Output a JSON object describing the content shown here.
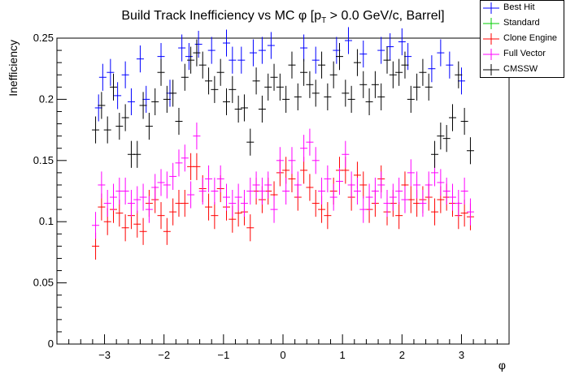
{
  "chart_data": {
    "type": "scatter",
    "title": "Build Track Inefficiency vs MC φ [p",
    "title_sub": "T",
    "title_rest": " > 0.0 GeV/c, Barrel]",
    "xlabel": "φ",
    "ylabel": "Inefficiency",
    "xlim": [
      -3.8,
      3.8
    ],
    "ylim": [
      0,
      0.25
    ],
    "xticks": [
      -3,
      -2,
      -1,
      0,
      1,
      2,
      3
    ],
    "xtick_labels": [
      "−3",
      "−2",
      "−1",
      "0",
      "1",
      "2",
      "3"
    ],
    "yticks": [
      0,
      0.05,
      0.1,
      0.15,
      0.2,
      0.25
    ],
    "ytick_labels": [
      "0",
      "0.05",
      "0.1",
      "0.15",
      "0.2",
      "0.25"
    ],
    "grid": false,
    "legend_position": "top-right",
    "series": [
      {
        "name": "Best Hit",
        "color": "#0000ff",
        "x": [
          -3.1,
          -3.03,
          -2.9,
          -2.78,
          -2.65,
          -2.55,
          -2.4,
          -2.3,
          -2.05,
          -1.9,
          -1.7,
          -1.58,
          -1.42,
          -1.2,
          -0.95,
          -0.85,
          -0.7,
          -0.5,
          -0.35,
          -0.2,
          0.35,
          0.55,
          0.9,
          1.1,
          1.35,
          1.65,
          1.8,
          2.0,
          2.1,
          2.5,
          2.65,
          2.8,
          3.0
        ],
        "y": [
          0.193,
          0.218,
          0.222,
          0.203,
          0.22,
          0.198,
          0.233,
          0.2,
          0.235,
          0.205,
          0.242,
          0.235,
          0.245,
          0.24,
          0.246,
          0.232,
          0.232,
          0.238,
          0.24,
          0.244,
          0.242,
          0.232,
          0.24,
          0.248,
          0.237,
          0.24,
          0.243,
          0.247,
          0.235,
          0.225,
          0.238,
          0.228,
          0.215
        ],
        "err": [
          0.011,
          0.011,
          0.011,
          0.011,
          0.011,
          0.011,
          0.011,
          0.011,
          0.011,
          0.011,
          0.011,
          0.011,
          0.011,
          0.011,
          0.011,
          0.011,
          0.011,
          0.011,
          0.011,
          0.011,
          0.011,
          0.011,
          0.011,
          0.011,
          0.011,
          0.011,
          0.011,
          0.011,
          0.011,
          0.011,
          0.011,
          0.011,
          0.011
        ]
      },
      {
        "name": "Standard",
        "color": "#00cc00",
        "x": [],
        "y": [],
        "err": []
      },
      {
        "name": "Clone Engine",
        "color": "#ff0000",
        "x": [
          -3.15,
          -3.05,
          -2.95,
          -2.85,
          -2.75,
          -2.65,
          -2.55,
          -2.45,
          -2.35,
          -2.25,
          -2.15,
          -2.05,
          -1.95,
          -1.85,
          -1.75,
          -1.65,
          -1.55,
          -1.45,
          -1.35,
          -1.25,
          -1.15,
          -1.05,
          -0.95,
          -0.85,
          -0.75,
          -0.65,
          -0.55,
          -0.45,
          -0.35,
          -0.25,
          -0.15,
          -0.05,
          0.05,
          0.15,
          0.25,
          0.35,
          0.45,
          0.55,
          0.65,
          0.75,
          0.85,
          0.95,
          1.05,
          1.15,
          1.25,
          1.35,
          1.45,
          1.55,
          1.65,
          1.75,
          1.85,
          1.95,
          2.05,
          2.15,
          2.25,
          2.35,
          2.45,
          2.55,
          2.65,
          2.75,
          2.85,
          2.95,
          3.05,
          3.15
        ],
        "y": [
          0.08,
          0.112,
          0.1,
          0.11,
          0.107,
          0.095,
          0.105,
          0.098,
          0.092,
          0.115,
          0.118,
          0.105,
          0.092,
          0.108,
          0.115,
          0.115,
          0.145,
          0.145,
          0.127,
          0.112,
          0.105,
          0.127,
          0.112,
          0.102,
          0.107,
          0.108,
          0.095,
          0.125,
          0.118,
          0.125,
          0.122,
          0.14,
          0.142,
          0.135,
          0.12,
          0.142,
          0.128,
          0.115,
          0.11,
          0.105,
          0.125,
          0.142,
          0.142,
          0.12,
          0.138,
          0.13,
          0.11,
          0.115,
          0.135,
          0.108,
          0.115,
          0.105,
          0.13,
          0.118,
          0.115,
          0.118,
          0.12,
          0.108,
          0.118,
          0.12,
          0.115,
          0.105,
          0.107,
          0.104
        ],
        "err": [
          0.011,
          0.011,
          0.011,
          0.011,
          0.011,
          0.011,
          0.011,
          0.011,
          0.011,
          0.011,
          0.011,
          0.011,
          0.011,
          0.011,
          0.011,
          0.011,
          0.011,
          0.011,
          0.011,
          0.011,
          0.011,
          0.011,
          0.011,
          0.011,
          0.011,
          0.011,
          0.011,
          0.011,
          0.011,
          0.011,
          0.011,
          0.011,
          0.011,
          0.011,
          0.011,
          0.011,
          0.011,
          0.011,
          0.011,
          0.011,
          0.011,
          0.011,
          0.011,
          0.011,
          0.011,
          0.011,
          0.011,
          0.011,
          0.011,
          0.011,
          0.011,
          0.011,
          0.011,
          0.011,
          0.011,
          0.011,
          0.011,
          0.011,
          0.011,
          0.011,
          0.011,
          0.011,
          0.011,
          0.011
        ]
      },
      {
        "name": "Full Vector",
        "color": "#ff00ff",
        "x": [
          -3.15,
          -3.05,
          -2.95,
          -2.85,
          -2.75,
          -2.65,
          -2.55,
          -2.45,
          -2.35,
          -2.25,
          -2.15,
          -2.05,
          -1.95,
          -1.85,
          -1.75,
          -1.65,
          -1.55,
          -1.45,
          -1.35,
          -1.25,
          -1.15,
          -1.05,
          -0.95,
          -0.85,
          -0.75,
          -0.65,
          -0.55,
          -0.45,
          -0.35,
          -0.25,
          -0.15,
          -0.05,
          0.05,
          0.15,
          0.25,
          0.35,
          0.45,
          0.55,
          0.65,
          0.75,
          0.85,
          0.95,
          1.05,
          1.15,
          1.25,
          1.35,
          1.45,
          1.55,
          1.65,
          1.75,
          1.85,
          1.95,
          2.05,
          2.15,
          2.25,
          2.35,
          2.45,
          2.55,
          2.65,
          2.75,
          2.85,
          2.95,
          3.05,
          3.15
        ],
        "y": [
          0.097,
          0.13,
          0.115,
          0.12,
          0.125,
          0.125,
          0.115,
          0.118,
          0.12,
          0.11,
          0.128,
          0.132,
          0.13,
          0.137,
          0.148,
          0.152,
          0.122,
          0.17,
          0.125,
          0.135,
          0.125,
          0.135,
          0.12,
          0.115,
          0.12,
          0.115,
          0.125,
          0.13,
          0.125,
          0.13,
          0.11,
          0.15,
          0.125,
          0.15,
          0.13,
          0.16,
          0.165,
          0.15,
          0.125,
          0.135,
          0.12,
          0.133,
          0.155,
          0.13,
          0.125,
          0.11,
          0.12,
          0.125,
          0.13,
          0.115,
          0.12,
          0.125,
          0.118,
          0.14,
          0.13,
          0.115,
          0.13,
          0.14,
          0.132,
          0.125,
          0.12,
          0.115,
          0.125,
          0.108
        ],
        "err": [
          0.011,
          0.011,
          0.011,
          0.011,
          0.011,
          0.011,
          0.011,
          0.011,
          0.011,
          0.011,
          0.011,
          0.011,
          0.011,
          0.011,
          0.011,
          0.011,
          0.011,
          0.011,
          0.011,
          0.011,
          0.011,
          0.011,
          0.011,
          0.011,
          0.011,
          0.011,
          0.011,
          0.011,
          0.011,
          0.011,
          0.011,
          0.011,
          0.011,
          0.011,
          0.011,
          0.011,
          0.011,
          0.011,
          0.011,
          0.011,
          0.011,
          0.011,
          0.011,
          0.011,
          0.011,
          0.011,
          0.011,
          0.011,
          0.011,
          0.011,
          0.011,
          0.011,
          0.011,
          0.011,
          0.011,
          0.011,
          0.011,
          0.011,
          0.011,
          0.011,
          0.011,
          0.011,
          0.011,
          0.011
        ]
      },
      {
        "name": "CMSSW",
        "color": "#000000",
        "x": [
          -3.15,
          -3.05,
          -2.95,
          -2.85,
          -2.75,
          -2.65,
          -2.55,
          -2.45,
          -2.35,
          -2.25,
          -2.15,
          -2.05,
          -1.95,
          -1.85,
          -1.75,
          -1.65,
          -1.55,
          -1.45,
          -1.35,
          -1.25,
          -1.15,
          -1.05,
          -0.95,
          -0.85,
          -0.75,
          -0.65,
          -0.55,
          -0.45,
          -0.35,
          -0.25,
          -0.15,
          -0.05,
          0.05,
          0.15,
          0.25,
          0.35,
          0.45,
          0.55,
          0.65,
          0.75,
          0.85,
          0.95,
          1.05,
          1.15,
          1.25,
          1.35,
          1.45,
          1.55,
          1.65,
          1.75,
          1.85,
          1.95,
          2.05,
          2.15,
          2.25,
          2.35,
          2.45,
          2.55,
          2.65,
          2.75,
          2.85,
          2.95,
          3.05,
          3.15
        ],
        "y": [
          0.175,
          0.195,
          0.175,
          0.21,
          0.178,
          0.185,
          0.155,
          0.155,
          0.195,
          0.178,
          0.198,
          0.222,
          0.2,
          0.205,
          0.182,
          0.218,
          0.232,
          0.238,
          0.228,
          0.215,
          0.208,
          0.222,
          0.198,
          0.208,
          0.192,
          0.193,
          0.165,
          0.215,
          0.192,
          0.21,
          0.218,
          0.21,
          0.2,
          0.228,
          0.202,
          0.222,
          0.212,
          0.205,
          0.228,
          0.202,
          0.22,
          0.235,
          0.205,
          0.2,
          0.23,
          0.212,
          0.198,
          0.212,
          0.202,
          0.232,
          0.22,
          0.222,
          0.228,
          0.2,
          0.21,
          0.222,
          0.21,
          0.155,
          0.17,
          0.168,
          0.185,
          0.22,
          0.182,
          0.158
        ],
        "err": [
          0.011,
          0.011,
          0.011,
          0.011,
          0.011,
          0.011,
          0.011,
          0.011,
          0.011,
          0.011,
          0.011,
          0.011,
          0.011,
          0.011,
          0.011,
          0.011,
          0.011,
          0.011,
          0.011,
          0.011,
          0.011,
          0.011,
          0.011,
          0.011,
          0.011,
          0.011,
          0.011,
          0.011,
          0.011,
          0.011,
          0.011,
          0.011,
          0.011,
          0.011,
          0.011,
          0.011,
          0.011,
          0.011,
          0.011,
          0.011,
          0.011,
          0.011,
          0.011,
          0.011,
          0.011,
          0.011,
          0.011,
          0.011,
          0.011,
          0.011,
          0.011,
          0.011,
          0.011,
          0.011,
          0.011,
          0.011,
          0.011,
          0.011,
          0.011,
          0.011,
          0.011,
          0.011,
          0.011,
          0.011
        ]
      }
    ]
  }
}
